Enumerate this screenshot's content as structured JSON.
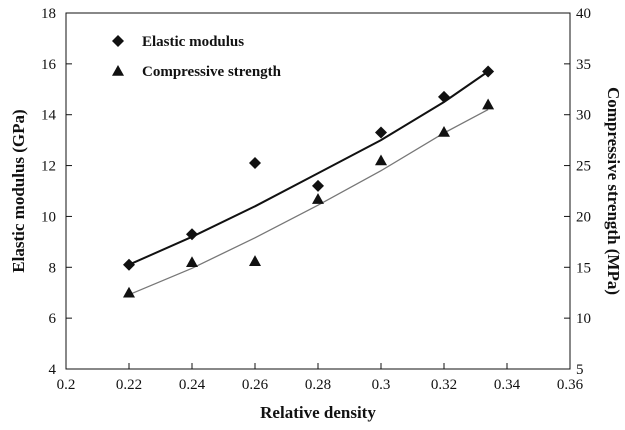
{
  "chart_data": {
    "type": "scatter",
    "title": "",
    "xlabel": "Relative density",
    "ylabel": "Elastic modulus (GPa)",
    "y2label": "Compressive strength (MPa)",
    "xlim": [
      0.2,
      0.36
    ],
    "ylim": [
      4,
      18
    ],
    "y2lim": [
      5,
      40
    ],
    "xticks": [
      "0.2",
      "0.22",
      "0.24",
      "0.26",
      "0.28",
      "0.3",
      "0.32",
      "0.34",
      "0.36"
    ],
    "yticks": [
      "4",
      "6",
      "8",
      "10",
      "12",
      "14",
      "16",
      "18"
    ],
    "y2ticks": [
      "5",
      "10",
      "15",
      "20",
      "25",
      "30",
      "35",
      "40"
    ],
    "grid": false,
    "legend_position": "top-left",
    "series": [
      {
        "name": "Elastic modulus",
        "axis": "left",
        "marker": "diamond",
        "x": [
          0.22,
          0.24,
          0.26,
          0.28,
          0.3,
          0.32,
          0.334
        ],
        "y": [
          8.1,
          9.3,
          12.1,
          11.2,
          13.3,
          14.7,
          15.7
        ],
        "trend": [
          [
            0.22,
            8.1
          ],
          [
            0.24,
            9.2
          ],
          [
            0.26,
            10.4
          ],
          [
            0.28,
            11.7
          ],
          [
            0.3,
            13.0
          ],
          [
            0.32,
            14.5
          ],
          [
            0.334,
            15.7
          ]
        ]
      },
      {
        "name": "Compressive strength",
        "axis": "right",
        "marker": "triangle",
        "x": [
          0.22,
          0.24,
          0.26,
          0.28,
          0.3,
          0.32,
          0.334
        ],
        "y": [
          12.5,
          15.5,
          15.6,
          21.7,
          25.5,
          28.3,
          31.0
        ],
        "trend": [
          [
            0.22,
            12.3
          ],
          [
            0.24,
            14.9
          ],
          [
            0.26,
            17.9
          ],
          [
            0.28,
            21.1
          ],
          [
            0.3,
            24.5
          ],
          [
            0.32,
            28.2
          ],
          [
            0.334,
            30.5
          ]
        ]
      }
    ]
  }
}
